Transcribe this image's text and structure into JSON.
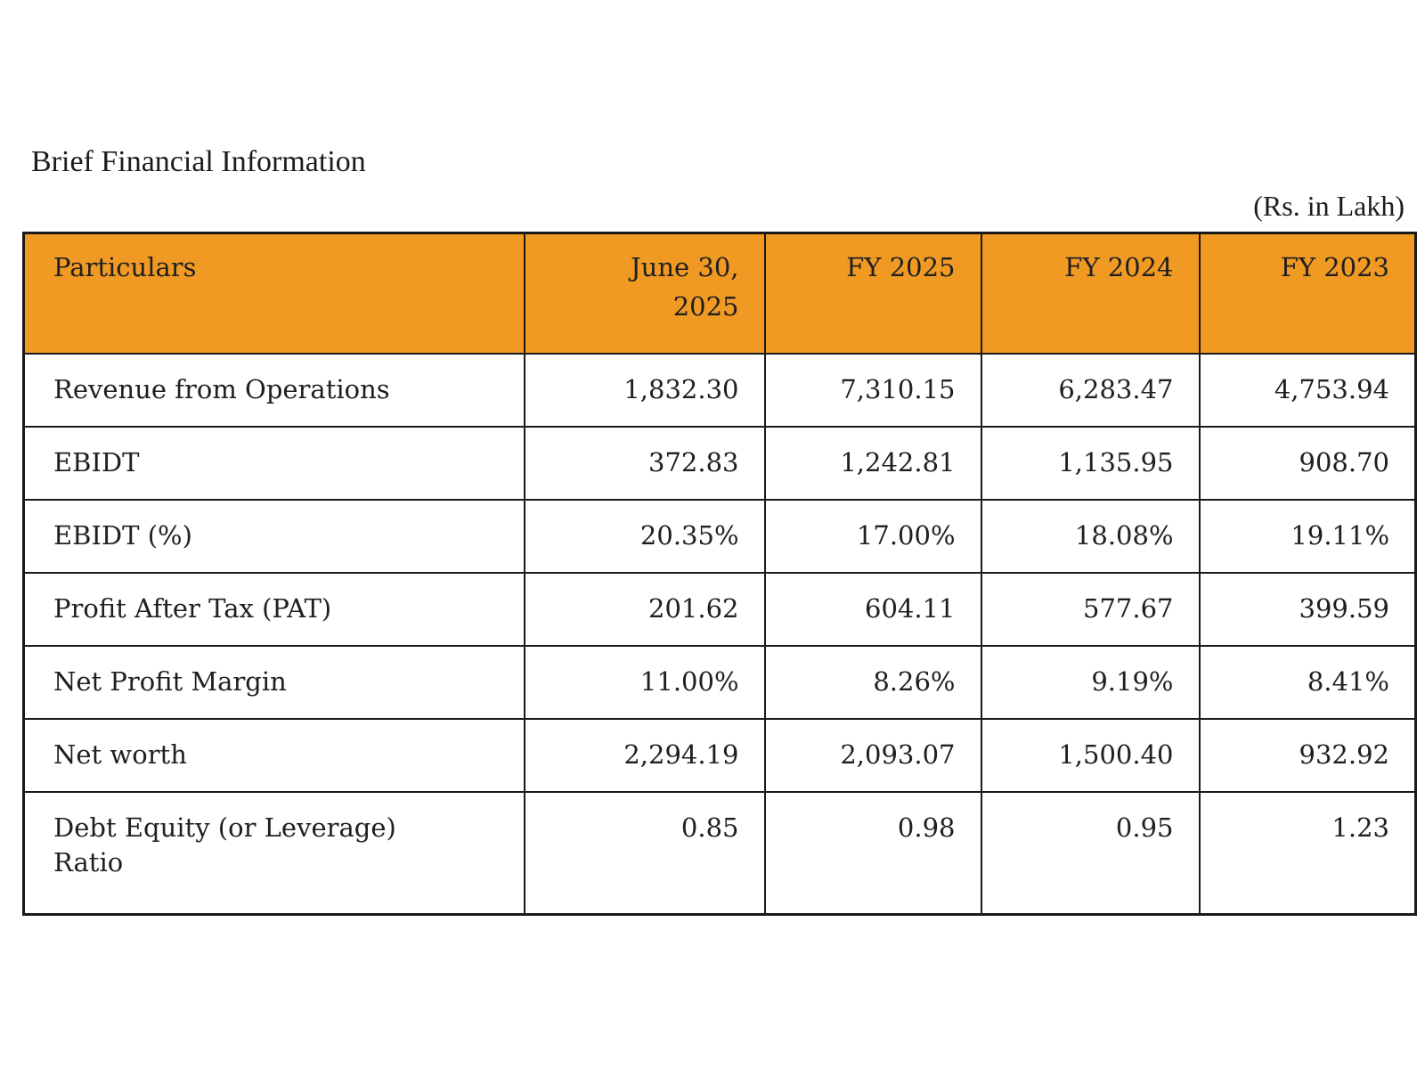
{
  "document": {
    "title": "Brief Financial Information",
    "unit_note": "(Rs. in Lakh)"
  },
  "colors": {
    "header_bg": "#F09A23",
    "border": "#1a1a1a",
    "text": "#1f1f1f"
  },
  "table": {
    "columns": [
      "Particulars",
      "June 30, 2025",
      "FY 2025",
      "FY 2024",
      "FY 2023"
    ],
    "rows": [
      {
        "label": "Revenue from Operations",
        "values": [
          "1,832.30",
          "7,310.15",
          "6,283.47",
          "4,753.94"
        ]
      },
      {
        "label": "EBIDT",
        "values": [
          "372.83",
          "1,242.81",
          "1,135.95",
          "908.70"
        ]
      },
      {
        "label": "EBIDT (%)",
        "values": [
          "20.35%",
          "17.00%",
          "18.08%",
          "19.11%"
        ]
      },
      {
        "label": "Profit After Tax (PAT)",
        "values": [
          "201.62",
          "604.11",
          "577.67",
          "399.59"
        ]
      },
      {
        "label": "Net Profit Margin",
        "values": [
          "11.00%",
          "8.26%",
          "9.19%",
          "8.41%"
        ]
      },
      {
        "label": "Net worth",
        "values": [
          "2,294.19",
          "2,093.07",
          "1,500.40",
          "932.92"
        ]
      },
      {
        "label": "Debt Equity (or Leverage) Ratio",
        "values": [
          "0.85",
          "0.98",
          "0.95",
          "1.23"
        ]
      }
    ]
  }
}
